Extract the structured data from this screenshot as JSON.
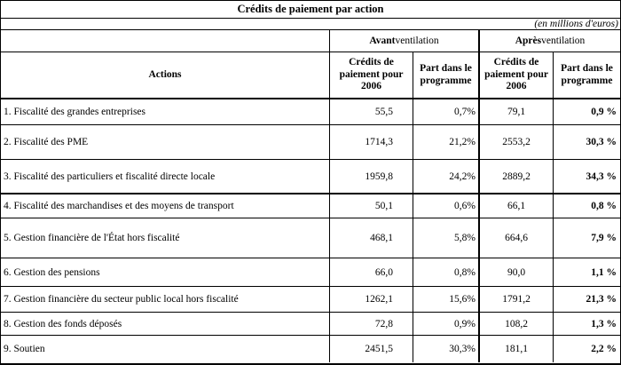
{
  "title": "Crédits de paiement par action",
  "unit_note": "(en millions d'euros)",
  "group_headers": {
    "avant_bold": "Avant",
    "avant_rest": " ventilation",
    "apres_bold": "Après",
    "apres_rest": " ventilation"
  },
  "column_headers": {
    "actions": "Actions",
    "credits_avant": "Crédits de paiement pour 2006",
    "part_avant": "Part dans le programme",
    "credits_apres": "Crédits de paiement pour 2006",
    "part_apres": "Part dans le programme"
  },
  "rows": [
    {
      "label": "1. Fiscalité des grandes entreprises",
      "credits_avant": "55,5",
      "part_avant": "0,7%",
      "credits_apres": "79,1",
      "part_apres": "0,9 %"
    },
    {
      "label": "2. Fiscalité des PME",
      "credits_avant": "1714,3",
      "part_avant": "21,2%",
      "credits_apres": "2553,2",
      "part_apres": "30,3 %"
    },
    {
      "label": "3. Fiscalité des particuliers et fiscalité directe locale",
      "credits_avant": "1959,8",
      "part_avant": "24,2%",
      "credits_apres": "2889,2",
      "part_apres": "34,3 %"
    },
    {
      "label": "4. Fiscalité des marchandises et des moyens de transport",
      "credits_avant": "50,1",
      "part_avant": "0,6%",
      "credits_apres": "66,1",
      "part_apres": "0,8 %"
    },
    {
      "label": "5. Gestion financière de l'État hors fiscalité",
      "credits_avant": "468,1",
      "part_avant": "5,8%",
      "credits_apres": "664,6",
      "part_apres": "7,9 %"
    },
    {
      "label": "6. Gestion des pensions",
      "credits_avant": "66,0",
      "part_avant": "0,8%",
      "credits_apres": "90,0",
      "part_apres": "1,1 %"
    },
    {
      "label": "7. Gestion financière du secteur public local hors fiscalité",
      "credits_avant": "1262,1",
      "part_avant": "15,6%",
      "credits_apres": "1791,2",
      "part_apres": "21,3 %"
    },
    {
      "label": "8. Gestion des fonds déposés",
      "credits_avant": "72,8",
      "part_avant": "0,9%",
      "credits_apres": "108,2",
      "part_apres": "1,3 %"
    },
    {
      "label": "9. Soutien",
      "credits_avant": "2451,5",
      "part_avant": "30,3%",
      "credits_apres": "181,1",
      "part_apres": "2,2 %"
    }
  ]
}
